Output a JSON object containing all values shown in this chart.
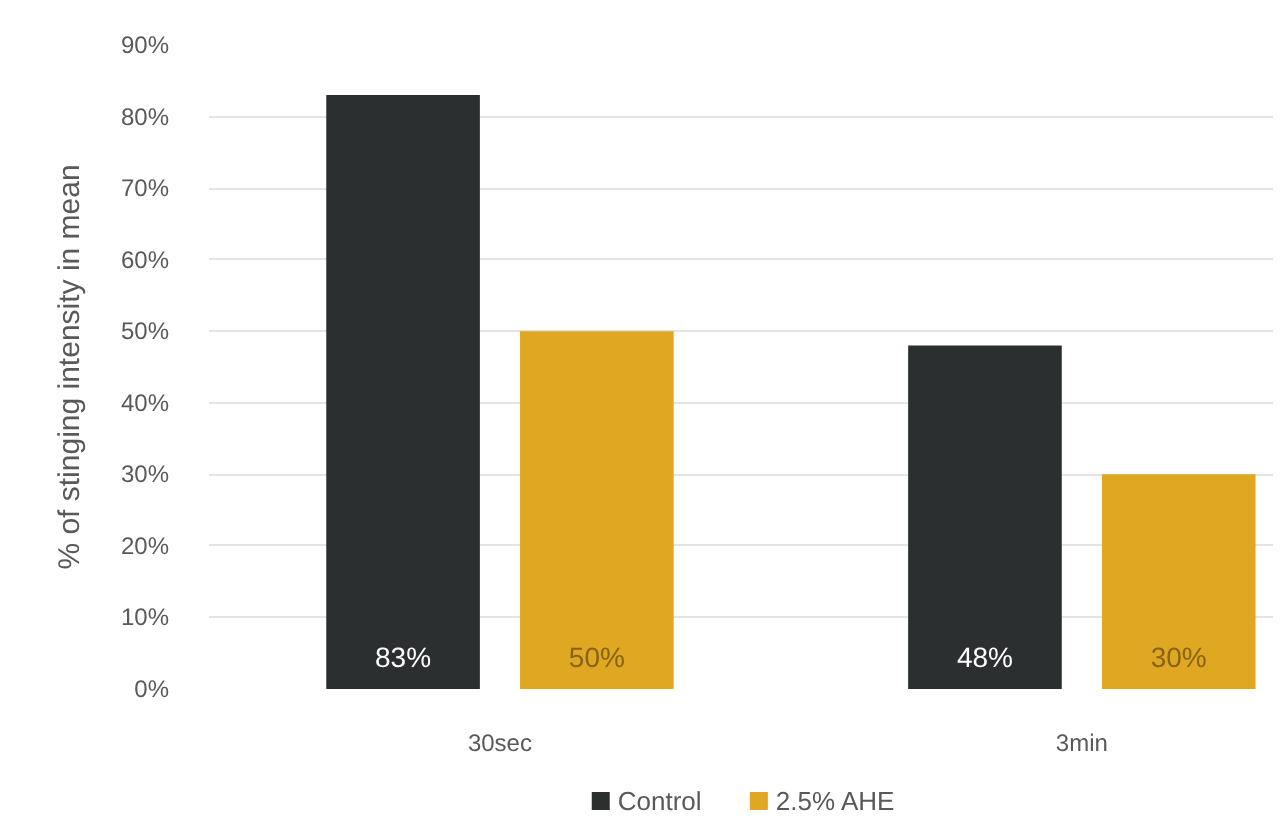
{
  "chart_data": {
    "type": "bar",
    "ylabel": "% of stinging intensity in mean",
    "categories": [
      "30sec",
      "3min"
    ],
    "series": [
      {
        "name": "Control",
        "color": "#2b2f30",
        "values": [
          83,
          48
        ],
        "value_labels": [
          "83%",
          "48%"
        ]
      },
      {
        "name": "2.5% AHE",
        "color": "#e0a722",
        "values": [
          50,
          30
        ],
        "value_labels": [
          "50%",
          "30%"
        ]
      }
    ],
    "ylim": [
      0,
      90
    ],
    "yticks": [
      {
        "value": 0,
        "label": "0%"
      },
      {
        "value": 10,
        "label": "10%"
      },
      {
        "value": 20,
        "label": "20%"
      },
      {
        "value": 30,
        "label": "30%"
      },
      {
        "value": 40,
        "label": "40%"
      },
      {
        "value": 50,
        "label": "50%"
      },
      {
        "value": 60,
        "label": "60%"
      },
      {
        "value": 70,
        "label": "70%"
      },
      {
        "value": 80,
        "label": "80%"
      },
      {
        "value": 90,
        "label": "90%"
      }
    ],
    "grid": "y",
    "legend": "bottom"
  }
}
